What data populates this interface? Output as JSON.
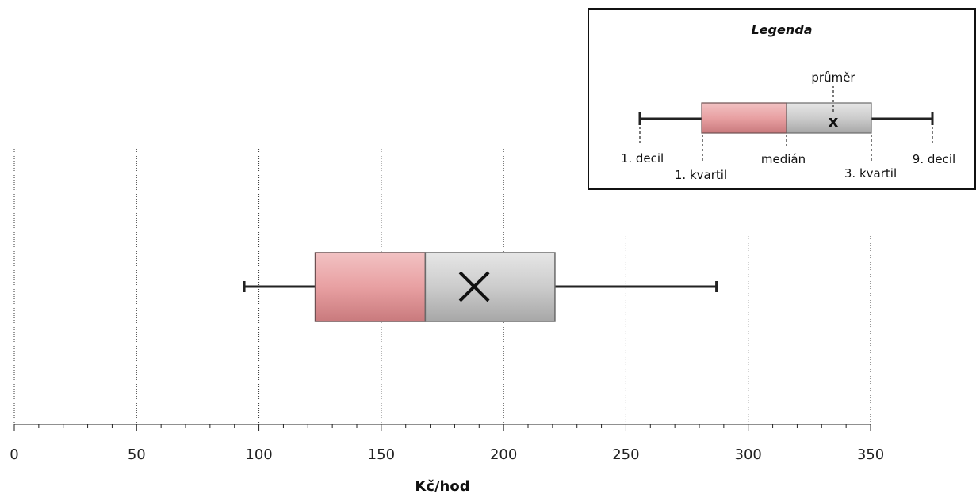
{
  "chart_data": {
    "type": "boxplot",
    "orientation": "horizontal",
    "xlabel": "Kč/hod",
    "xlim": [
      0,
      350
    ],
    "x_ticks": [
      0,
      50,
      100,
      150,
      200,
      250,
      300,
      350
    ],
    "x_tick_labels": [
      "0",
      "50",
      "100",
      "150",
      "200",
      "250",
      "300",
      "350"
    ],
    "minor_tick_step": 10,
    "grid": "vertical-dotted",
    "box": {
      "decile_1": 94,
      "quartile_1": 123,
      "median": 168,
      "quartile_3": 221,
      "decile_9": 287,
      "mean": 188
    },
    "colors": {
      "lower_box": "#e8a0a2",
      "upper_box": "#c9c9c9",
      "whisker": "#222222",
      "grid": "#333333"
    }
  },
  "legend": {
    "title": "Legenda",
    "mean_label": "průměr",
    "decile_1_label": "1. decil",
    "quartile_1_label": "1. kvartil",
    "median_label": "medián",
    "quartile_3_label": "3. kvartil",
    "decile_9_label": "9. decil",
    "mean_marker": "x"
  }
}
